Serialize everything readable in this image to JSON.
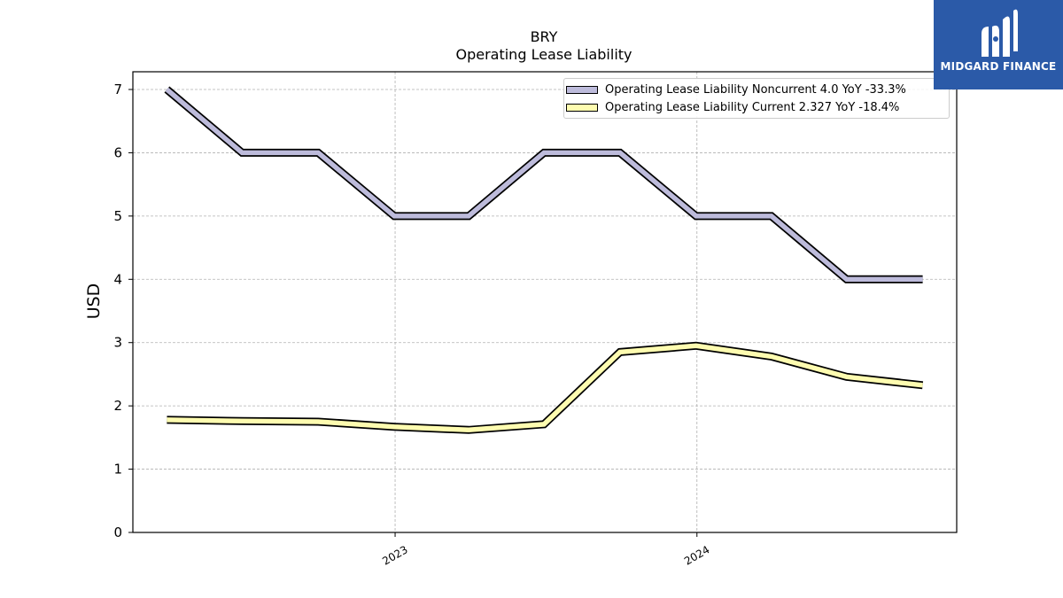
{
  "chart_data": {
    "type": "line",
    "title": "BRY",
    "subtitle": "Operating Lease Liability",
    "ylabel": "USD",
    "xlabel": "",
    "ylim": [
      0,
      7.28
    ],
    "yticks": [
      0,
      1,
      2,
      3,
      4,
      5,
      6,
      7
    ],
    "x": [
      "2022-03-31",
      "2022-06-30",
      "2022-09-30",
      "2022-12-31",
      "2023-03-31",
      "2023-06-30",
      "2023-09-30",
      "2023-12-31",
      "2024-03-31",
      "2024-06-30",
      "2024-09-30"
    ],
    "xticks": [
      {
        "label": "2023",
        "date": "2023-01-01"
      },
      {
        "label": "2024",
        "date": "2024-01-01"
      }
    ],
    "grid": true,
    "legend_position": "top-right",
    "series": [
      {
        "name": "Operating Lease Liability Noncurrent  4.0 YoY -33.3%",
        "color": "#bdbbdb",
        "values": [
          7.0,
          6.0,
          6.0,
          5.0,
          5.0,
          6.0,
          6.0,
          5.0,
          5.0,
          4.0,
          4.0
        ]
      },
      {
        "name": "Operating Lease Liability Current  2.327 YoY -18.4%",
        "color": "#fefcb0",
        "values": [
          1.78,
          1.76,
          1.75,
          1.67,
          1.62,
          1.71,
          2.85,
          2.95,
          2.78,
          2.46,
          2.327
        ]
      }
    ]
  },
  "logo": {
    "text": "MIDGARD FINANCE",
    "color": "#2b5aa8"
  }
}
